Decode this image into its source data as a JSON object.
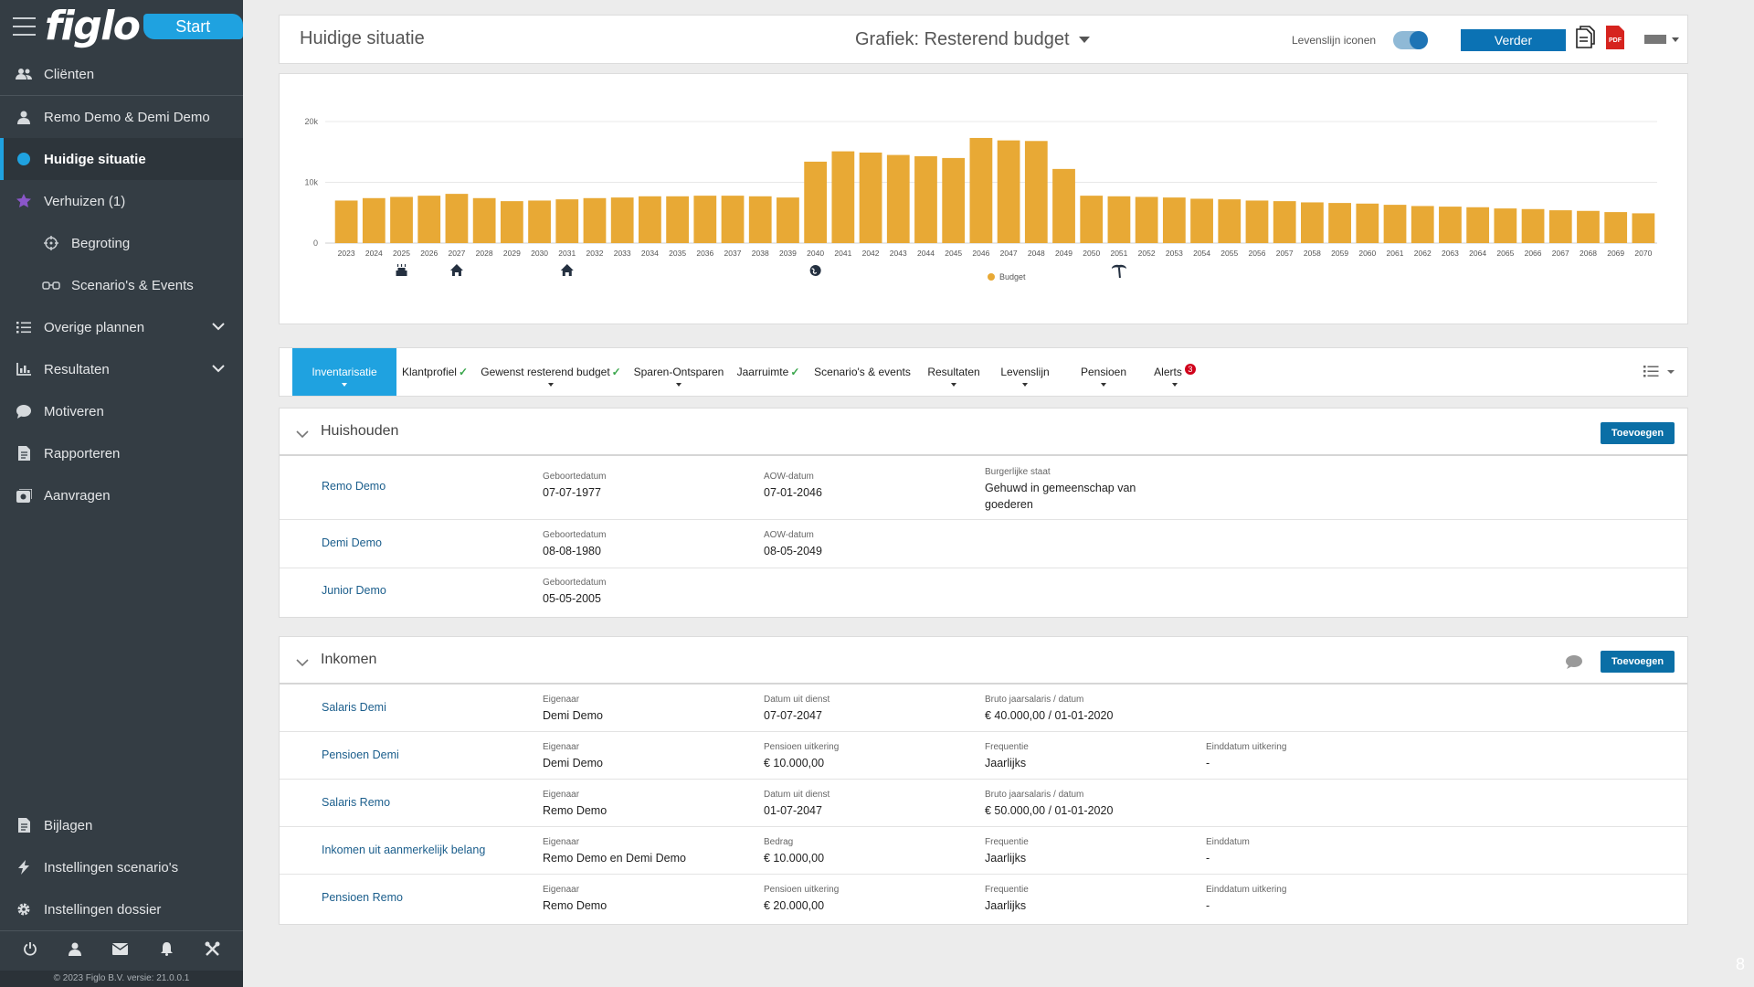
{
  "sidebar": {
    "logo": "figlo",
    "start_label": "Start",
    "items": [
      {
        "label": "Cliënten"
      },
      {
        "label": "Remo Demo & Demi Demo"
      },
      {
        "label": "Huidige situatie"
      },
      {
        "label": "Verhuizen (1)"
      },
      {
        "label": "Begroting"
      },
      {
        "label": "Scenario's & Events"
      },
      {
        "label": "Overige plannen"
      },
      {
        "label": "Resultaten"
      },
      {
        "label": "Motiveren"
      },
      {
        "label": "Rapporteren"
      },
      {
        "label": "Aanvragen"
      }
    ],
    "bottom_items": [
      {
        "label": "Bijlagen"
      },
      {
        "label": "Instellingen scenario's"
      },
      {
        "label": "Instellingen dossier"
      }
    ],
    "copyright": "© 2023 Figlo B.V. versie: 21.0.0.1"
  },
  "topbar": {
    "title": "Huidige situatie",
    "chart_selector": "Grafiek:  Resterend budget",
    "levenslijn_label": "Levenslijn iconen",
    "verder_label": "Verder",
    "pdf_label": "PDF"
  },
  "colors": {
    "bar": "#e8a935",
    "accent": "#1fa2e0",
    "button": "#0b72b4",
    "sidebar": "#343d44",
    "link": "#1b5e8c"
  },
  "chart_data": {
    "type": "bar",
    "categories": [
      "2023",
      "2024",
      "2025",
      "2026",
      "2027",
      "2028",
      "2029",
      "2030",
      "2031",
      "2032",
      "2033",
      "2034",
      "2035",
      "2036",
      "2037",
      "2038",
      "2039",
      "2040",
      "2041",
      "2042",
      "2043",
      "2044",
      "2045",
      "2046",
      "2047",
      "2048",
      "2049",
      "2050",
      "2051",
      "2052",
      "2053",
      "2054",
      "2055",
      "2056",
      "2057",
      "2058",
      "2059",
      "2060",
      "2061",
      "2062",
      "2063",
      "2064",
      "2065",
      "2066",
      "2067",
      "2068",
      "2069",
      "2070"
    ],
    "series": [
      {
        "name": "Budget",
        "values": [
          7000,
          7400,
          7600,
          7800,
          8100,
          7400,
          6900,
          7000,
          7200,
          7400,
          7500,
          7700,
          7700,
          7800,
          7800,
          7700,
          7500,
          13400,
          15100,
          14900,
          14500,
          14300,
          14000,
          17300,
          16900,
          16800,
          12200,
          7800,
          7700,
          7600,
          7500,
          7300,
          7200,
          7000,
          6900,
          6700,
          6600,
          6500,
          6300,
          6100,
          6000,
          5900,
          5700,
          5600,
          5400,
          5300,
          5100,
          4900
        ]
      }
    ],
    "yticks": [
      {
        "label": "20k",
        "value": 20000
      },
      {
        "label": "10k",
        "value": 10000
      },
      {
        "label": "0",
        "value": 0
      }
    ],
    "ylim": [
      0,
      20000
    ],
    "legend": "bottom-center",
    "grid": true,
    "events": [
      {
        "year": "2025",
        "icon": "cake-icon"
      },
      {
        "year": "2027",
        "icon": "house-icon"
      },
      {
        "year": "2031",
        "icon": "house-icon"
      },
      {
        "year": "2040",
        "icon": "globe-icon"
      },
      {
        "year": "2051",
        "icon": "palm-tree-icon"
      }
    ]
  },
  "tabs": [
    {
      "label": "Inventarisatie",
      "check": "",
      "badge": ""
    },
    {
      "label": "Klantprofiel",
      "check": "✓",
      "badge": ""
    },
    {
      "label": "Gewenst resterend budget",
      "check": "✓",
      "badge": ""
    },
    {
      "label": "Sparen-Ontsparen",
      "check": "",
      "badge": ""
    },
    {
      "label": "Jaarruimte",
      "check": "✓",
      "badge": ""
    },
    {
      "label": "Scenario's & events",
      "check": "",
      "badge": ""
    },
    {
      "label": "Resultaten",
      "check": "",
      "badge": ""
    },
    {
      "label": "Levenslijn",
      "check": "",
      "badge": ""
    },
    {
      "label": "Pensioen",
      "check": "",
      "badge": ""
    },
    {
      "label": "Alerts",
      "check": "",
      "badge": "3"
    }
  ],
  "huishouden": {
    "title": "Huishouden",
    "add_label": "Toevoegen",
    "rows": [
      {
        "name": "Remo Demo",
        "f1_label": "Geboortedatum",
        "f1_value": "07-07-1977",
        "f2_label": "AOW-datum",
        "f2_value": "07-01-2046",
        "f3_label": "Burgerlijke staat",
        "f3_value": "Gehuwd in gemeenschap van goederen"
      },
      {
        "name": "Demi Demo",
        "f1_label": "Geboortedatum",
        "f1_value": "08-08-1980",
        "f2_label": "AOW-datum",
        "f2_value": "08-05-2049"
      },
      {
        "name": "Junior Demo",
        "f1_label": "Geboortedatum",
        "f1_value": "05-05-2005"
      }
    ]
  },
  "inkomen": {
    "title": "Inkomen",
    "add_label": "Toevoegen",
    "rows": [
      {
        "name": "Salaris Demi",
        "f1_label": "Eigenaar",
        "f1_value": "Demi Demo",
        "f2_label": "Datum uit dienst",
        "f2_value": "07-07-2047",
        "f3_label": "Bruto jaarsalaris / datum",
        "f3_value": "€ 40.000,00 / 01-01-2020"
      },
      {
        "name": "Pensioen Demi",
        "f1_label": "Eigenaar",
        "f1_value": "Demi Demo",
        "f2_label": "Pensioen uitkering",
        "f2_value": "€ 10.000,00",
        "f3_label": "Frequentie",
        "f3_value": "Jaarlijks",
        "f4_label": "Einddatum uitkering",
        "f4_value": "-"
      },
      {
        "name": "Salaris Remo",
        "f1_label": "Eigenaar",
        "f1_value": "Remo Demo",
        "f2_label": "Datum uit dienst",
        "f2_value": "01-07-2047",
        "f3_label": "Bruto jaarsalaris / datum",
        "f3_value": "€ 50.000,00 / 01-01-2020"
      },
      {
        "name": "Inkomen uit aanmerkelijk belang",
        "f1_label": "Eigenaar",
        "f1_value": "Remo Demo en Demi Demo",
        "f2_label": "Bedrag",
        "f2_value": "€ 10.000,00",
        "f3_label": "Frequentie",
        "f3_value": "Jaarlijks",
        "f4_label": "Einddatum",
        "f4_value": "-"
      },
      {
        "name": "Pensioen Remo",
        "f1_label": "Eigenaar",
        "f1_value": "Remo Demo",
        "f2_label": "Pensioen uitkering",
        "f2_value": "€ 20.000,00",
        "f3_label": "Frequentie",
        "f3_value": "Jaarlijks",
        "f4_label": "Einddatum uitkering",
        "f4_value": "-"
      }
    ]
  },
  "page_number": "8"
}
